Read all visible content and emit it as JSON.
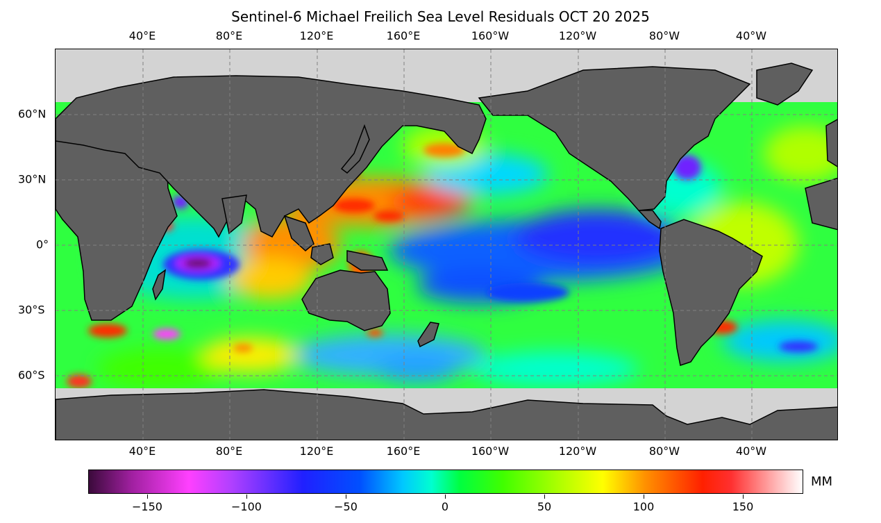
{
  "title": "Sentinel-6 Michael Freilich Sea Level Residuals OCT 20 2025",
  "lon_ticks": [
    "40°E",
    "80°E",
    "120°E",
    "160°E",
    "160°W",
    "120°W",
    "80°W",
    "40°W"
  ],
  "lat_ticks": [
    "60°N",
    "30°N",
    "0°",
    "30°S",
    "60°S"
  ],
  "colorbar": {
    "units": "MM",
    "ticks": [
      "−150",
      "−100",
      "−50",
      "0",
      "50",
      "100",
      "150"
    ],
    "range": [
      -180,
      180
    ]
  },
  "colors": {
    "land": "#5f5f5f",
    "ocean_masked": "#d3d3d3",
    "gridline": "#808080"
  }
}
